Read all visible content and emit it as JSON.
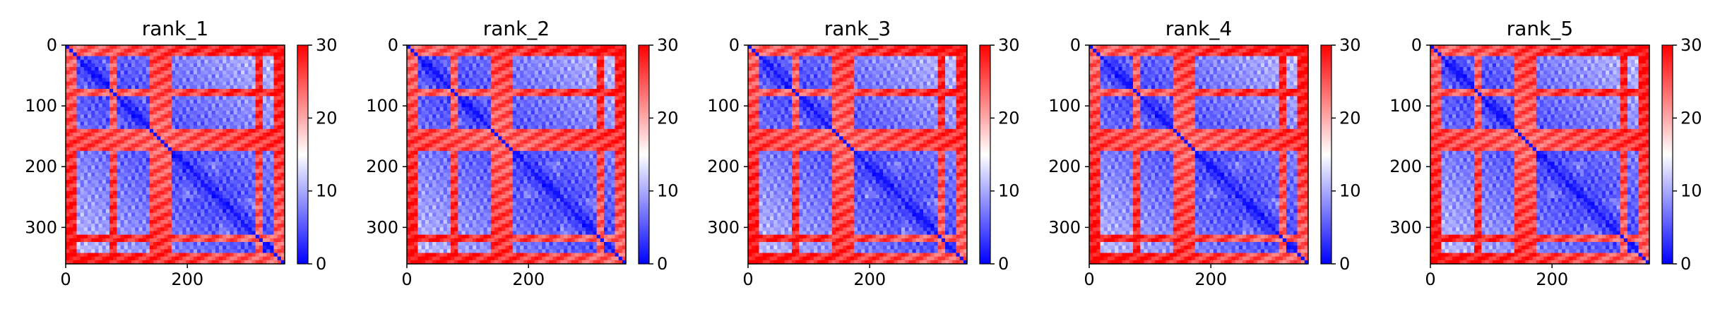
{
  "colors": {
    "cmap_low": "#0000ff",
    "cmap_mid": "#ffffff",
    "cmap_high": "#ff0000",
    "axis": "#000000",
    "background": "#ffffff"
  },
  "chart_data": [
    {
      "type": "heatmap",
      "title": "rank_1",
      "xlabel": "",
      "ylabel": "",
      "xlim": [
        0,
        360
      ],
      "ylim": [
        360,
        0
      ],
      "xticks": [
        0,
        200
      ],
      "yticks": [
        0,
        100,
        200,
        300
      ],
      "colorbar": {
        "min": 0,
        "max": 30,
        "ticks": [
          0,
          10,
          20,
          30
        ],
        "colors": [
          "blue",
          "white",
          "red"
        ]
      },
      "cmap": "bwr",
      "grid": false,
      "domains_residue_ranges": [
        [
          0,
          22
        ],
        [
          22,
          70
        ],
        [
          80,
          135
        ],
        [
          150,
          195
        ],
        [
          195,
          250
        ],
        [
          250,
          310
        ],
        [
          310,
          360
        ]
      ],
      "high_distance_bands": [
        [
          0,
          18
        ],
        [
          70,
          85
        ],
        [
          140,
          175
        ],
        [
          310,
          325
        ],
        [
          340,
          360
        ]
      ]
    },
    {
      "type": "heatmap",
      "title": "rank_2",
      "xlabel": "",
      "ylabel": "",
      "xlim": [
        0,
        360
      ],
      "ylim": [
        360,
        0
      ],
      "xticks": [
        0,
        200
      ],
      "yticks": [
        0,
        100,
        200,
        300
      ],
      "colorbar": {
        "min": 0,
        "max": 30,
        "ticks": [
          0,
          10,
          20,
          30
        ],
        "colors": [
          "blue",
          "white",
          "red"
        ]
      },
      "cmap": "bwr",
      "grid": false,
      "domains_residue_ranges": [
        [
          0,
          22
        ],
        [
          22,
          70
        ],
        [
          80,
          135
        ],
        [
          150,
          195
        ],
        [
          195,
          250
        ],
        [
          250,
          310
        ],
        [
          310,
          360
        ]
      ],
      "high_distance_bands": [
        [
          0,
          18
        ],
        [
          70,
          85
        ],
        [
          140,
          175
        ],
        [
          310,
          325
        ],
        [
          340,
          360
        ]
      ]
    },
    {
      "type": "heatmap",
      "title": "rank_3",
      "xlabel": "",
      "ylabel": "",
      "xlim": [
        0,
        360
      ],
      "ylim": [
        360,
        0
      ],
      "xticks": [
        0,
        200
      ],
      "yticks": [
        0,
        100,
        200,
        300
      ],
      "colorbar": {
        "min": 0,
        "max": 30,
        "ticks": [
          0,
          10,
          20,
          30
        ],
        "colors": [
          "blue",
          "white",
          "red"
        ]
      },
      "cmap": "bwr",
      "grid": false,
      "domains_residue_ranges": [
        [
          0,
          22
        ],
        [
          22,
          70
        ],
        [
          80,
          135
        ],
        [
          150,
          195
        ],
        [
          195,
          250
        ],
        [
          250,
          310
        ],
        [
          310,
          360
        ]
      ],
      "high_distance_bands": [
        [
          0,
          18
        ],
        [
          70,
          85
        ],
        [
          140,
          175
        ],
        [
          310,
          325
        ],
        [
          340,
          360
        ]
      ]
    },
    {
      "type": "heatmap",
      "title": "rank_4",
      "xlabel": "",
      "ylabel": "",
      "xlim": [
        0,
        360
      ],
      "ylim": [
        360,
        0
      ],
      "xticks": [
        0,
        200
      ],
      "yticks": [
        0,
        100,
        200,
        300
      ],
      "colorbar": {
        "min": 0,
        "max": 30,
        "ticks": [
          0,
          10,
          20,
          30
        ],
        "colors": [
          "blue",
          "white",
          "red"
        ]
      },
      "cmap": "bwr",
      "grid": false,
      "domains_residue_ranges": [
        [
          0,
          22
        ],
        [
          22,
          70
        ],
        [
          80,
          135
        ],
        [
          150,
          195
        ],
        [
          195,
          250
        ],
        [
          250,
          310
        ],
        [
          310,
          360
        ]
      ],
      "high_distance_bands": [
        [
          0,
          18
        ],
        [
          70,
          85
        ],
        [
          140,
          175
        ],
        [
          310,
          325
        ],
        [
          340,
          360
        ]
      ]
    },
    {
      "type": "heatmap",
      "title": "rank_5",
      "xlabel": "",
      "ylabel": "",
      "xlim": [
        0,
        360
      ],
      "ylim": [
        360,
        0
      ],
      "xticks": [
        0,
        200
      ],
      "yticks": [
        0,
        100,
        200,
        300
      ],
      "colorbar": {
        "min": 0,
        "max": 30,
        "ticks": [
          0,
          10,
          20,
          30
        ],
        "colors": [
          "blue",
          "white",
          "red"
        ]
      },
      "cmap": "bwr",
      "grid": false,
      "domains_residue_ranges": [
        [
          0,
          22
        ],
        [
          22,
          70
        ],
        [
          80,
          135
        ],
        [
          150,
          195
        ],
        [
          195,
          250
        ],
        [
          250,
          310
        ],
        [
          310,
          360
        ]
      ],
      "high_distance_bands": [
        [
          0,
          18
        ],
        [
          70,
          85
        ],
        [
          140,
          175
        ],
        [
          310,
          325
        ],
        [
          340,
          360
        ]
      ]
    }
  ]
}
